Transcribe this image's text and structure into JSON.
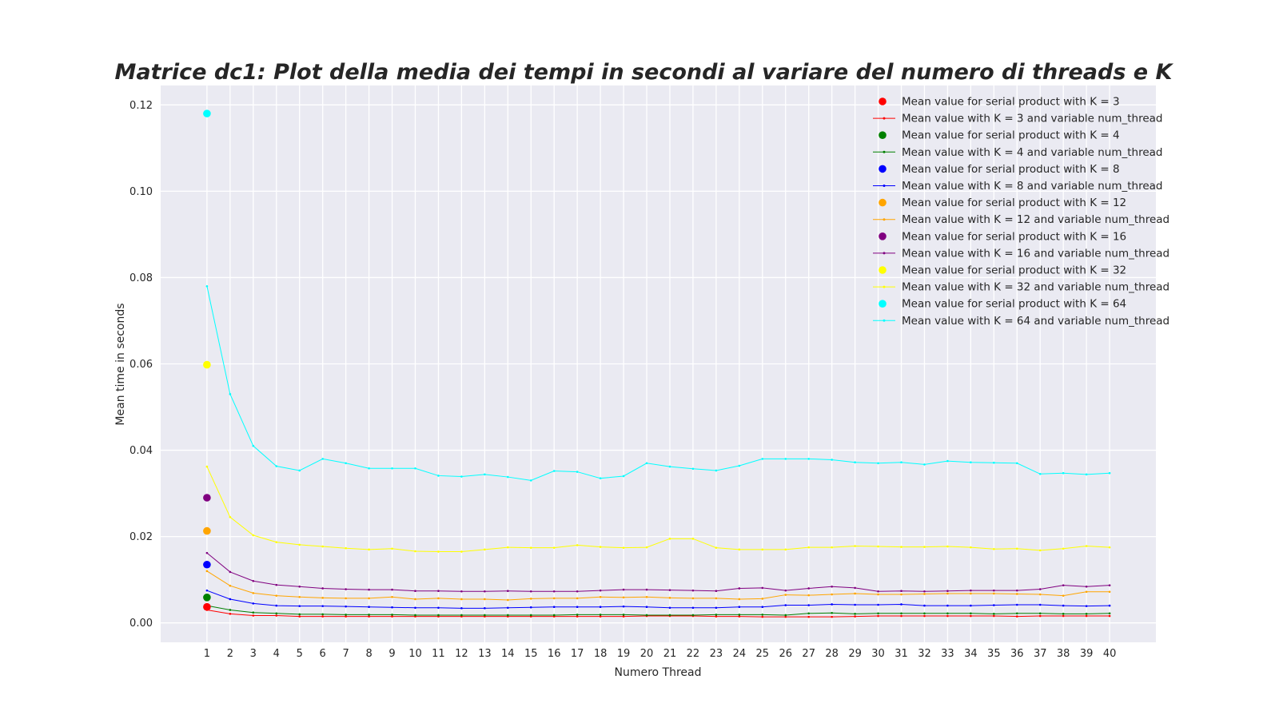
{
  "chart_data": {
    "type": "line",
    "title": "Matrice dc1: Plot della media dei tempi in secondi al variare del numero di threads e K",
    "xlabel": "Numero Thread",
    "ylabel": "Mean time in seconds",
    "x": [
      1,
      2,
      3,
      4,
      5,
      6,
      7,
      8,
      9,
      10,
      11,
      12,
      13,
      14,
      15,
      16,
      17,
      18,
      19,
      20,
      21,
      22,
      23,
      24,
      25,
      26,
      27,
      28,
      29,
      30,
      31,
      32,
      33,
      34,
      35,
      36,
      37,
      38,
      39,
      40
    ],
    "xticks": [
      "1",
      "2",
      "3",
      "4",
      "5",
      "6",
      "7",
      "8",
      "9",
      "10",
      "11",
      "12",
      "13",
      "14",
      "15",
      "16",
      "17",
      "18",
      "19",
      "20",
      "21",
      "22",
      "23",
      "24",
      "25",
      "26",
      "27",
      "28",
      "29",
      "30",
      "31",
      "32",
      "33",
      "34",
      "35",
      "36",
      "37",
      "38",
      "39",
      "40"
    ],
    "xlim": [
      -1,
      42
    ],
    "ylim": [
      -0.0045,
      0.1245
    ],
    "yticks": [
      0.0,
      0.02,
      0.04,
      0.06,
      0.08,
      0.1,
      0.12
    ],
    "ytick_labels": [
      "0.00",
      "0.02",
      "0.04",
      "0.06",
      "0.08",
      "0.10",
      "0.12"
    ],
    "grid": true,
    "legend_position": "top-right",
    "background": "#eaeaf2",
    "series": [
      {
        "k": 3,
        "color": "#ff0000",
        "serial_label": "Mean value for serial product with K = 3",
        "line_label": "Mean value with K = 3 and variable num_thread",
        "serial_value": 0.0037,
        "values": [
          0.003,
          0.0021,
          0.0017,
          0.0017,
          0.0015,
          0.0015,
          0.0015,
          0.0015,
          0.0015,
          0.0015,
          0.0015,
          0.0015,
          0.0015,
          0.0015,
          0.0015,
          0.0015,
          0.0015,
          0.0015,
          0.0015,
          0.0016,
          0.0016,
          0.0016,
          0.0015,
          0.0015,
          0.0014,
          0.0014,
          0.0014,
          0.0014,
          0.0015,
          0.0016,
          0.0016,
          0.0016,
          0.0016,
          0.0016,
          0.0016,
          0.0015,
          0.0016,
          0.0016,
          0.0016,
          0.0016
        ]
      },
      {
        "k": 4,
        "color": "#008000",
        "serial_label": "Mean value for serial product with K = 4",
        "line_label": "Mean value with K = 4 and variable num_thread",
        "serial_value": 0.0059,
        "values": [
          0.004,
          0.003,
          0.0024,
          0.0022,
          0.002,
          0.002,
          0.0019,
          0.0019,
          0.0019,
          0.0018,
          0.0018,
          0.0018,
          0.0018,
          0.0018,
          0.0018,
          0.0018,
          0.0019,
          0.0019,
          0.0019,
          0.0018,
          0.0018,
          0.0018,
          0.0019,
          0.0019,
          0.0019,
          0.0018,
          0.0022,
          0.0023,
          0.0021,
          0.0022,
          0.0022,
          0.0022,
          0.0022,
          0.0022,
          0.0021,
          0.0022,
          0.0022,
          0.0021,
          0.0021,
          0.0022
        ]
      },
      {
        "k": 8,
        "color": "#0000ff",
        "serial_label": "Mean value for serial product with K = 8",
        "line_label": "Mean value with K = 8 and variable num_thread",
        "serial_value": 0.0135,
        "values": [
          0.0075,
          0.0055,
          0.0045,
          0.004,
          0.0039,
          0.0039,
          0.0038,
          0.0037,
          0.0036,
          0.0035,
          0.0035,
          0.0034,
          0.0034,
          0.0035,
          0.0036,
          0.0037,
          0.0037,
          0.0037,
          0.0038,
          0.0037,
          0.0035,
          0.0035,
          0.0035,
          0.0037,
          0.0037,
          0.0041,
          0.0041,
          0.0043,
          0.0042,
          0.0042,
          0.0043,
          0.004,
          0.004,
          0.004,
          0.0041,
          0.0042,
          0.0042,
          0.004,
          0.0039,
          0.004
        ]
      },
      {
        "k": 12,
        "color": "#ffa500",
        "serial_label": "Mean value for serial product with K = 12",
        "line_label": "Mean value with K = 12 and variable num_thread",
        "serial_value": 0.0213,
        "values": [
          0.012,
          0.0086,
          0.0069,
          0.0063,
          0.006,
          0.0058,
          0.0057,
          0.0057,
          0.006,
          0.0055,
          0.0057,
          0.0055,
          0.0055,
          0.0053,
          0.0056,
          0.0057,
          0.0057,
          0.006,
          0.0059,
          0.006,
          0.0058,
          0.0057,
          0.0057,
          0.0055,
          0.0056,
          0.0065,
          0.0064,
          0.0066,
          0.0068,
          0.0066,
          0.0066,
          0.0067,
          0.0068,
          0.0068,
          0.0068,
          0.0067,
          0.0066,
          0.0063,
          0.0072,
          0.0072
        ]
      },
      {
        "k": 16,
        "color": "#800080",
        "serial_label": "Mean value for serial product with K = 16",
        "line_label": "Mean value with K = 16 and variable num_thread",
        "serial_value": 0.029,
        "values": [
          0.0162,
          0.0118,
          0.0097,
          0.0088,
          0.0084,
          0.008,
          0.0078,
          0.0077,
          0.0077,
          0.0074,
          0.0074,
          0.0073,
          0.0073,
          0.0074,
          0.0073,
          0.0073,
          0.0073,
          0.0075,
          0.0077,
          0.0077,
          0.0076,
          0.0075,
          0.0074,
          0.008,
          0.0081,
          0.0075,
          0.008,
          0.0084,
          0.0081,
          0.0073,
          0.0074,
          0.0073,
          0.0074,
          0.0075,
          0.0075,
          0.0075,
          0.0078,
          0.0087,
          0.0084,
          0.0087
        ]
      },
      {
        "k": 32,
        "color": "#ffff00",
        "serial_label": "Mean value for serial product with K = 32",
        "line_label": "Mean value with K = 32 and variable num_thread",
        "serial_value": 0.0598,
        "values": [
          0.0362,
          0.0245,
          0.0203,
          0.0187,
          0.0181,
          0.0177,
          0.0173,
          0.017,
          0.0172,
          0.0166,
          0.0165,
          0.0165,
          0.017,
          0.0175,
          0.0174,
          0.0174,
          0.018,
          0.0176,
          0.0174,
          0.0175,
          0.0195,
          0.0195,
          0.0174,
          0.017,
          0.017,
          0.017,
          0.0175,
          0.0175,
          0.0178,
          0.0177,
          0.0176,
          0.0176,
          0.0177,
          0.0175,
          0.0171,
          0.0172,
          0.0168,
          0.0172,
          0.0178,
          0.0175
        ]
      },
      {
        "k": 64,
        "color": "#00ffff",
        "serial_label": "Mean value for serial product with K = 64",
        "line_label": "Mean value with K = 64 and variable num_thread",
        "serial_value": 0.118,
        "values": [
          0.078,
          0.053,
          0.041,
          0.0363,
          0.0353,
          0.038,
          0.037,
          0.0358,
          0.0358,
          0.0358,
          0.0341,
          0.0339,
          0.0344,
          0.0338,
          0.033,
          0.0352,
          0.035,
          0.0335,
          0.034,
          0.037,
          0.0362,
          0.0357,
          0.0353,
          0.0364,
          0.038,
          0.038,
          0.038,
          0.0378,
          0.0372,
          0.037,
          0.0372,
          0.0367,
          0.0375,
          0.0372,
          0.0371,
          0.037,
          0.0345,
          0.0347,
          0.0344,
          0.0347
        ]
      }
    ]
  }
}
